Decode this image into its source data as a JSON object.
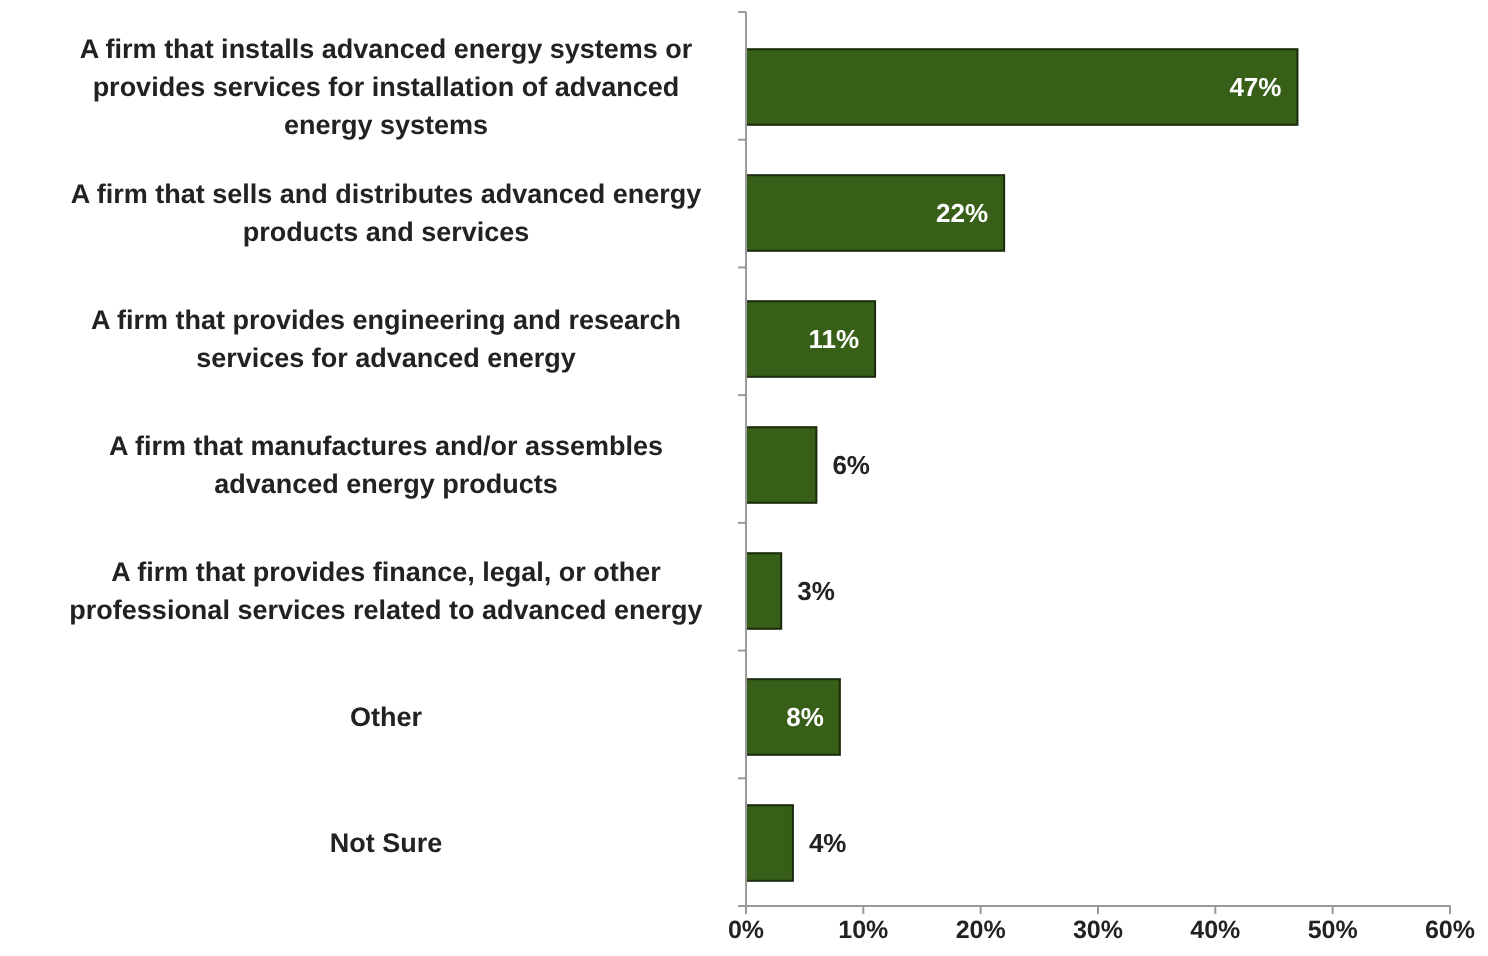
{
  "chart_data": {
    "type": "bar",
    "orientation": "horizontal",
    "categories": [
      "A firm that installs advanced energy systems or provides services for installation of advanced energy systems",
      "A firm that sells and distributes advanced energy products and services",
      "A firm that provides engineering and research services for advanced energy",
      "A firm that manufactures and/or assembles advanced energy products",
      "A firm that provides finance, legal, or other professional services related to advanced energy",
      "Other",
      "Not Sure"
    ],
    "values": [
      47,
      22,
      11,
      6,
      3,
      8,
      4
    ],
    "value_labels": [
      "47%",
      "22%",
      "11%",
      "6%",
      "3%",
      "8%",
      "4%"
    ],
    "color": "#375f17",
    "xlim": [
      0,
      60
    ],
    "xticks": [
      {
        "value": 0,
        "label": "0%"
      },
      {
        "value": 10,
        "label": "10%"
      },
      {
        "value": 20,
        "label": "20%"
      },
      {
        "value": 30,
        "label": "30%"
      },
      {
        "value": 40,
        "label": "40%"
      },
      {
        "value": 50,
        "label": "50%"
      },
      {
        "value": 60,
        "label": "60%"
      }
    ],
    "grid": false
  }
}
